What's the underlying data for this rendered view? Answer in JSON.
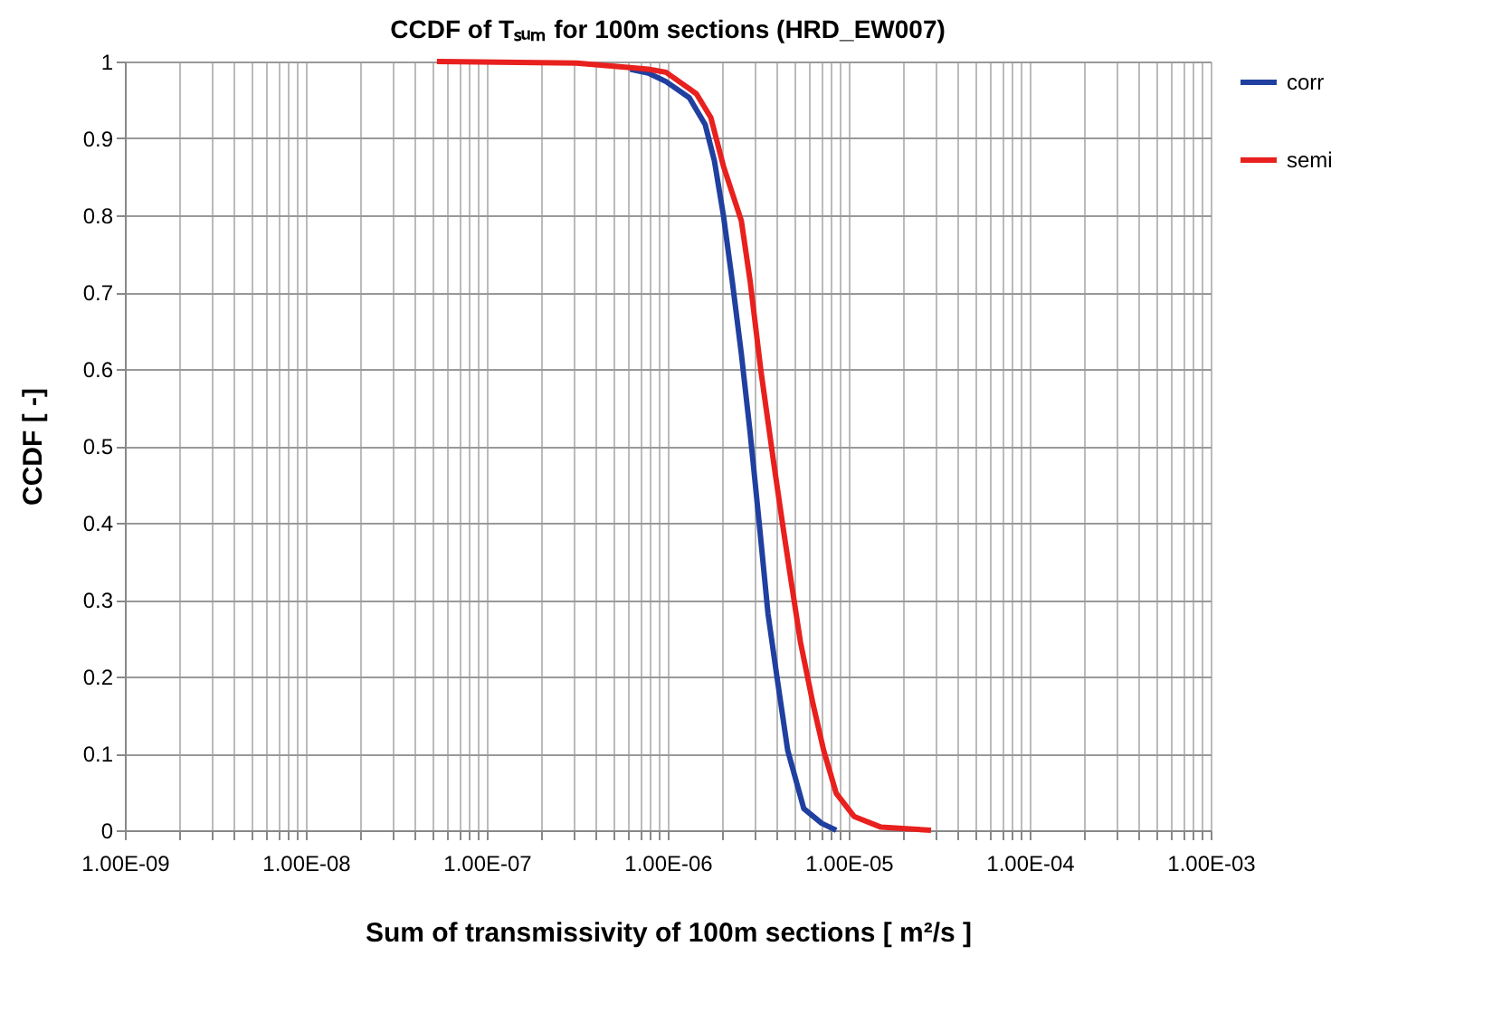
{
  "chart_data": {
    "type": "line",
    "title": "CCDF of Tₛᵤₘ for 100m sections (HRD_EW007)",
    "xlabel": "Sum of transmissivity of 100m sections [ m²/s ]",
    "ylabel": "CCDF [ -]",
    "log": "x",
    "xlim": [
      1e-09,
      0.001
    ],
    "ylim": [
      0,
      1
    ],
    "xticks": [
      {
        "value": 1e-09,
        "label": "1.00E-09"
      },
      {
        "value": 2e-09,
        "label": null
      },
      {
        "value": 3e-09,
        "label": null
      },
      {
        "value": 4e-09,
        "label": null
      },
      {
        "value": 5e-09,
        "label": null
      },
      {
        "value": 6e-09,
        "label": null
      },
      {
        "value": 7e-09,
        "label": null
      },
      {
        "value": 8e-09,
        "label": null
      },
      {
        "value": 9e-09,
        "label": null
      },
      {
        "value": 1e-08,
        "label": "1.00E-08"
      },
      {
        "value": 2e-08,
        "label": null
      },
      {
        "value": 3e-08,
        "label": null
      },
      {
        "value": 4e-08,
        "label": null
      },
      {
        "value": 5e-08,
        "label": null
      },
      {
        "value": 6e-08,
        "label": null
      },
      {
        "value": 7e-08,
        "label": null
      },
      {
        "value": 8e-08,
        "label": null
      },
      {
        "value": 9e-08,
        "label": null
      },
      {
        "value": 1e-07,
        "label": "1.00E-07"
      },
      {
        "value": 2e-07,
        "label": null
      },
      {
        "value": 3e-07,
        "label": null
      },
      {
        "value": 4e-07,
        "label": null
      },
      {
        "value": 5e-07,
        "label": null
      },
      {
        "value": 6e-07,
        "label": null
      },
      {
        "value": 7e-07,
        "label": null
      },
      {
        "value": 8e-07,
        "label": null
      },
      {
        "value": 9e-07,
        "label": null
      },
      {
        "value": 1e-06,
        "label": "1.00E-06"
      },
      {
        "value": 2e-06,
        "label": null
      },
      {
        "value": 3e-06,
        "label": null
      },
      {
        "value": 4e-06,
        "label": null
      },
      {
        "value": 5e-06,
        "label": null
      },
      {
        "value": 6e-06,
        "label": null
      },
      {
        "value": 7e-06,
        "label": null
      },
      {
        "value": 8e-06,
        "label": null
      },
      {
        "value": 9e-06,
        "label": null
      },
      {
        "value": 1e-05,
        "label": "1.00E-05"
      },
      {
        "value": 2e-05,
        "label": null
      },
      {
        "value": 3e-05,
        "label": null
      },
      {
        "value": 4e-05,
        "label": null
      },
      {
        "value": 5e-05,
        "label": null
      },
      {
        "value": 6e-05,
        "label": null
      },
      {
        "value": 7e-05,
        "label": null
      },
      {
        "value": 8e-05,
        "label": null
      },
      {
        "value": 9e-05,
        "label": null
      },
      {
        "value": 0.0001,
        "label": "1.00E-04"
      },
      {
        "value": 0.0002,
        "label": null
      },
      {
        "value": 0.0003,
        "label": null
      },
      {
        "value": 0.0004,
        "label": null
      },
      {
        "value": 0.0005,
        "label": null
      },
      {
        "value": 0.0006,
        "label": null
      },
      {
        "value": 0.0007,
        "label": null
      },
      {
        "value": 0.0008,
        "label": null
      },
      {
        "value": 0.0009,
        "label": null
      },
      {
        "value": 0.001,
        "label": "1.00E-03"
      }
    ],
    "yticks": [
      0,
      0.1,
      0.2,
      0.3,
      0.4,
      0.5,
      0.6,
      0.7,
      0.8,
      0.9,
      1
    ],
    "grid": true,
    "legend": "right",
    "marker": "none",
    "line_style": "solid",
    "series": [
      {
        "name": "corr",
        "color": "#2040a0",
        "x": [
          6.2e-07,
          7.8e-07,
          9.77e-07,
          1.315e-06,
          1.61e-06,
          1.81e-06,
          2.03e-06,
          2.27e-06,
          2.55e-06,
          2.85e-06,
          3.2e-06,
          3.58e-06,
          4.02e-06,
          4.6e-06,
          5.65e-06,
          7.1e-06,
          8.53e-06
        ],
        "values": [
          0.99,
          0.985,
          0.974,
          0.953,
          0.918,
          0.871,
          0.8,
          0.715,
          0.62,
          0.518,
          0.4,
          0.282,
          0.198,
          0.104,
          0.028,
          0.009,
          0
        ]
      },
      {
        "name": "semi",
        "color": "#e8201e",
        "x": [
          5.3e-08,
          3.13e-07,
          6.2e-07,
          7.8e-07,
          9.77e-07,
          1.44e-06,
          1.73e-06,
          2.03e-06,
          2.55e-06,
          2.85e-06,
          3.27e-06,
          3.84e-06,
          4.3e-06,
          4.82e-06,
          5.41e-06,
          6.34e-06,
          7.27e-06,
          8.53e-06,
          1.07e-05,
          1.51e-05,
          2.85e-05
        ],
        "values": [
          1,
          0.998,
          0.992,
          0.99,
          0.986,
          0.958,
          0.927,
          0.864,
          0.793,
          0.715,
          0.598,
          0.48,
          0.4,
          0.322,
          0.245,
          0.165,
          0.104,
          0.048,
          0.018,
          0.004,
          0
        ]
      }
    ]
  }
}
